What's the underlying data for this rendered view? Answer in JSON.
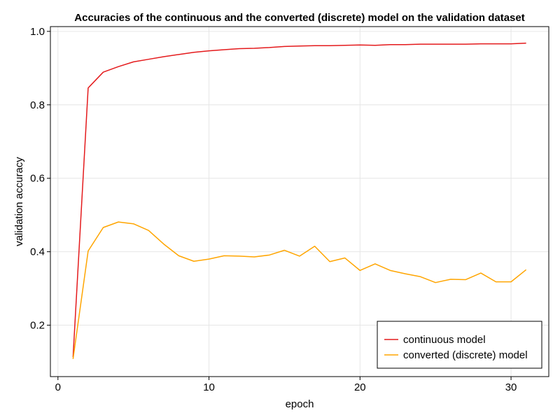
{
  "chart_data": {
    "type": "line",
    "title": "Accuracies of the continuous and the converted (discrete) model on the validation dataset",
    "xlabel": "epoch",
    "ylabel": "validation accuracy",
    "xlim": [
      -0.5,
      32.5
    ],
    "ylim": [
      0.06,
      1.013
    ],
    "xticks": [
      0,
      10,
      20,
      30
    ],
    "yticks": [
      0.2,
      0.4,
      0.6,
      0.8,
      1.0
    ],
    "xtick_labels": [
      "0",
      "10",
      "20",
      "30"
    ],
    "ytick_labels": [
      "0.2",
      "0.4",
      "0.6",
      "0.8",
      "1.0"
    ],
    "grid": true,
    "legend_position": "bottom-right",
    "x": [
      1,
      2,
      3,
      4,
      5,
      6,
      7,
      8,
      9,
      10,
      11,
      12,
      13,
      14,
      15,
      16,
      17,
      18,
      19,
      20,
      21,
      22,
      23,
      24,
      25,
      26,
      27,
      28,
      29,
      30,
      31
    ],
    "series": [
      {
        "name": "continuous model",
        "color": "#e41a1c",
        "values": [
          0.113,
          0.846,
          0.889,
          0.904,
          0.917,
          0.924,
          0.931,
          0.937,
          0.943,
          0.947,
          0.95,
          0.953,
          0.954,
          0.956,
          0.959,
          0.96,
          0.961,
          0.961,
          0.962,
          0.963,
          0.962,
          0.964,
          0.964,
          0.965,
          0.965,
          0.965,
          0.965,
          0.966,
          0.966,
          0.966,
          0.968
        ]
      },
      {
        "name": "converted (discrete) model",
        "color": "#ffa500",
        "values": [
          0.108,
          0.402,
          0.466,
          0.481,
          0.476,
          0.458,
          0.421,
          0.389,
          0.374,
          0.38,
          0.389,
          0.388,
          0.386,
          0.391,
          0.404,
          0.388,
          0.415,
          0.373,
          0.383,
          0.349,
          0.367,
          0.349,
          0.34,
          0.332,
          0.316,
          0.325,
          0.324,
          0.342,
          0.318,
          0.318,
          0.351
        ]
      }
    ]
  }
}
